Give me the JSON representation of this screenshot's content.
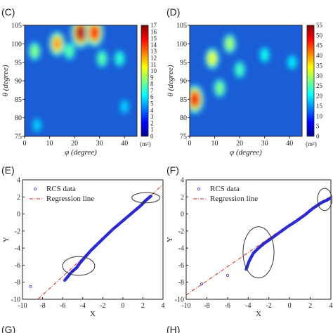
{
  "panels": {
    "C": {
      "letter": "(C)"
    },
    "D": {
      "letter": "(D)"
    },
    "E": {
      "letter": "(E)"
    },
    "F": {
      "letter": "(F)"
    },
    "G": {
      "letter": "(G)"
    },
    "H": {
      "letter": "(H)"
    }
  },
  "chart_data": [
    {
      "panel": "(C)",
      "type": "heatmap",
      "xlabel": "φ (degree)",
      "ylabel": "θ (degree)",
      "xlim": [
        0,
        45
      ],
      "ylim": [
        75,
        105
      ],
      "xticks": [
        0,
        10,
        20,
        30,
        40
      ],
      "yticks": [
        75,
        80,
        85,
        90,
        95,
        100,
        105
      ],
      "colorbar": {
        "min": 0,
        "max": 17,
        "ticks": [
          0,
          1,
          2,
          3,
          4,
          5,
          6,
          7,
          8,
          9,
          10,
          11,
          12,
          13,
          14,
          15,
          16,
          17
        ],
        "unit": "(m²)",
        "colormap": "jet"
      },
      "hotspots": [
        {
          "x": 22.5,
          "y": 103,
          "value": 17
        },
        {
          "x": 28,
          "y": 103,
          "value": 15
        },
        {
          "x": 13,
          "y": 100,
          "value": 12
        },
        {
          "x": 4,
          "y": 98,
          "value": 7
        },
        {
          "x": 18,
          "y": 98,
          "value": 6
        },
        {
          "x": 31,
          "y": 96,
          "value": 6
        },
        {
          "x": 38,
          "y": 96,
          "value": 5
        },
        {
          "x": 5,
          "y": 78,
          "value": 3
        },
        {
          "x": 40,
          "y": 83,
          "value": 3
        }
      ]
    },
    {
      "panel": "(D)",
      "type": "heatmap",
      "xlabel": "φ (degree)",
      "ylabel": "θ (degree)",
      "xlim": [
        0,
        45
      ],
      "ylim": [
        75,
        105
      ],
      "xticks": [
        0,
        10,
        20,
        30,
        40
      ],
      "yticks": [
        75,
        80,
        85,
        90,
        95,
        100,
        105
      ],
      "colorbar": {
        "min": 0,
        "max": 55,
        "ticks": [
          0,
          5,
          10,
          15,
          20,
          25,
          30,
          35,
          40,
          45,
          50,
          55
        ],
        "unit": "(m²)",
        "colormap": "jet"
      },
      "hotspots": [
        {
          "x": 2,
          "y": 85,
          "value": 50
        },
        {
          "x": 9,
          "y": 96,
          "value": 30
        },
        {
          "x": 16,
          "y": 100,
          "value": 25
        },
        {
          "x": 12,
          "y": 88,
          "value": 22
        },
        {
          "x": 20,
          "y": 93,
          "value": 18
        },
        {
          "x": 30,
          "y": 97,
          "value": 14
        },
        {
          "x": 41,
          "y": 95,
          "value": 12
        }
      ]
    },
    {
      "panel": "(E)",
      "type": "scatter",
      "xlabel": "X",
      "ylabel": "Y",
      "xlim": [
        -10,
        4
      ],
      "ylim": [
        -10,
        4
      ],
      "xticks": [
        -10,
        -8,
        -6,
        -4,
        -2,
        0,
        2,
        4
      ],
      "yticks": [
        -10,
        -8,
        -6,
        -4,
        -2,
        0,
        2,
        4
      ],
      "legend": [
        "RCS data",
        "Regression line"
      ],
      "legend_position": "top-left",
      "regression": {
        "slope": 1.08,
        "intercept": -0.85
      },
      "series_points": [
        [
          -9.2,
          -8.5
        ],
        [
          -5.8,
          -7.8
        ],
        [
          -5.1,
          -6.8
        ],
        [
          -4.6,
          -6.3
        ],
        [
          -4.3,
          -5.8
        ],
        [
          -3.8,
          -5.1
        ],
        [
          -3.2,
          -4.3
        ],
        [
          -2.5,
          -3.5
        ],
        [
          -1.8,
          -2.7
        ],
        [
          -1.0,
          -1.8
        ],
        [
          -0.3,
          -1.1
        ],
        [
          0.5,
          -0.3
        ],
        [
          1.2,
          0.4
        ],
        [
          1.8,
          1.0
        ],
        [
          2.2,
          1.5
        ],
        [
          2.6,
          1.9
        ],
        [
          2.8,
          2.1
        ]
      ],
      "ellipses": [
        {
          "cx": -4.4,
          "cy": -6.1,
          "rx": 1.6,
          "ry": 1.1
        },
        {
          "cx": 2.3,
          "cy": 1.9,
          "rx": 1.4,
          "ry": 0.6
        }
      ]
    },
    {
      "panel": "(F)",
      "type": "scatter",
      "xlabel": "X",
      "ylabel": "Y",
      "xlim": [
        -10,
        4
      ],
      "ylim": [
        -10,
        4
      ],
      "xticks": [
        -10,
        -8,
        -6,
        -4,
        -2,
        0,
        2,
        4
      ],
      "yticks": [
        -10,
        -8,
        -6,
        -4,
        -2,
        0,
        2,
        4
      ],
      "legend": [
        "RCS data",
        "Regression line"
      ],
      "legend_position": "top-left",
      "regression": {
        "slope": 0.83,
        "intercept": -1.2
      },
      "series_points": [
        [
          -8.5,
          -8.2
        ],
        [
          -6.0,
          -7.2
        ],
        [
          -4.2,
          -6.5
        ],
        [
          -3.9,
          -5.5
        ],
        [
          -3.5,
          -4.6
        ],
        [
          -3.0,
          -4.0
        ],
        [
          -2.4,
          -3.4
        ],
        [
          -1.8,
          -2.9
        ],
        [
          -1.0,
          -2.2
        ],
        [
          -0.2,
          -1.5
        ],
        [
          0.7,
          -0.8
        ],
        [
          1.5,
          -0.1
        ],
        [
          2.2,
          0.6
        ],
        [
          2.8,
          1.1
        ],
        [
          3.2,
          1.4
        ],
        [
          3.6,
          1.6
        ],
        [
          4.0,
          1.9
        ]
      ],
      "ellipses": [
        {
          "cx": -3.0,
          "cy": -4.5,
          "rx": 1.5,
          "ry": 3.0
        },
        {
          "cx": 3.4,
          "cy": 1.7,
          "rx": 0.7,
          "ry": 1.3
        }
      ]
    }
  ]
}
